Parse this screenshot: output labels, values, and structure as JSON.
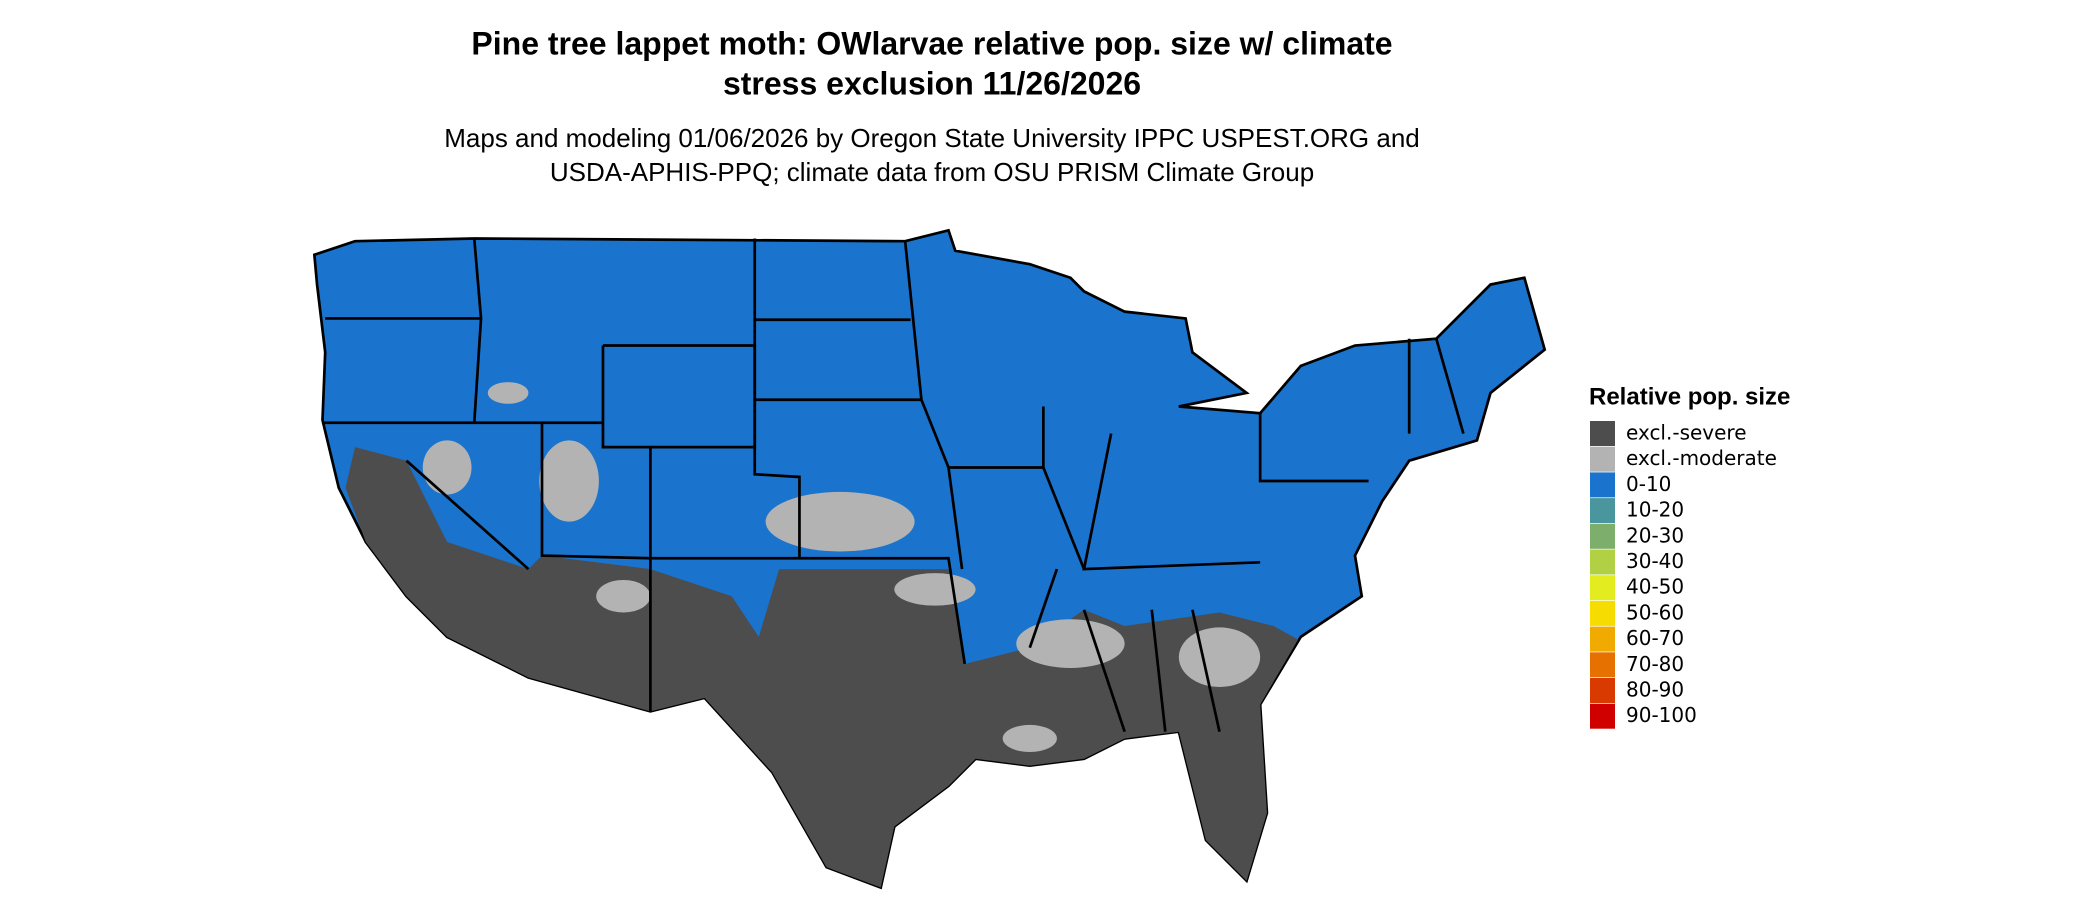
{
  "header": {
    "title_lines": [
      "Pine tree lappet moth: OWlarvae relative pop. size w/ climate",
      "stress exclusion 11/26/2026"
    ],
    "subtitle_lines": [
      "Maps and modeling 01/06/2026 by Oregon State University IPPC USPEST.ORG and",
      "USDA-APHIS-PPQ; climate data from OSU PRISM Climate Group"
    ]
  },
  "legend": {
    "title": "Relative pop. size",
    "items": [
      {
        "label": "excl.-severe",
        "color": "#4d4d4d"
      },
      {
        "label": "excl.-moderate",
        "color": "#b3b3b3"
      },
      {
        "label": "0-10",
        "color": "#1a73cc"
      },
      {
        "label": "10-20",
        "color": "#4a969e"
      },
      {
        "label": "20-30",
        "color": "#7dae6c"
      },
      {
        "label": "30-40",
        "color": "#b2d044"
      },
      {
        "label": "40-50",
        "color": "#e2ec1e"
      },
      {
        "label": "50-60",
        "color": "#f6dc00"
      },
      {
        "label": "60-70",
        "color": "#f0aa00"
      },
      {
        "label": "70-80",
        "color": "#e67000"
      },
      {
        "label": "80-90",
        "color": "#d83a00"
      },
      {
        "label": "90-100",
        "color": "#d00000"
      }
    ]
  }
}
